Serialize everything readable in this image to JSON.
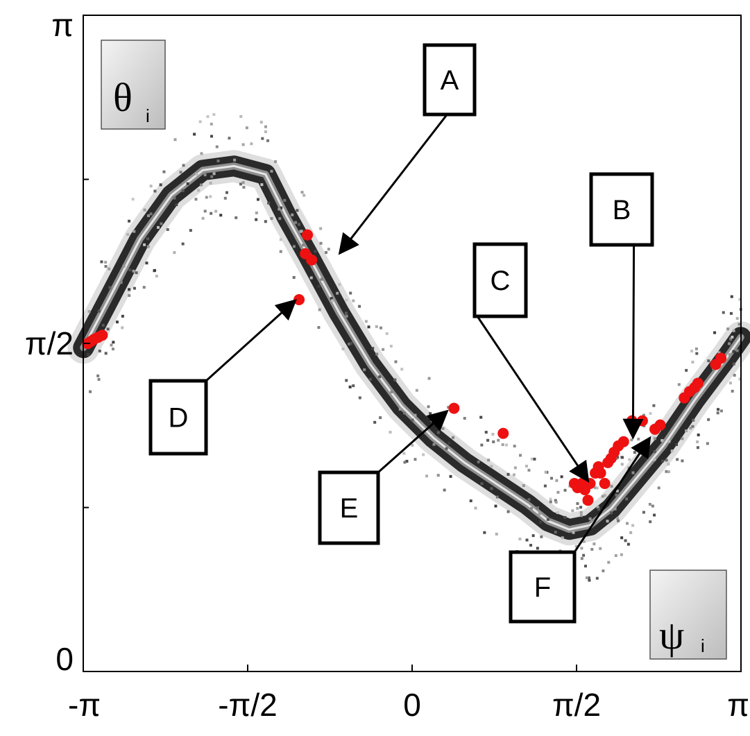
{
  "chart_data": {
    "type": "scatter",
    "title": "",
    "xlabel": "ψi",
    "ylabel": "θi",
    "xlim": [
      -3.14159,
      3.14159
    ],
    "ylim": [
      0,
      3.14159
    ],
    "grid": false,
    "x_ticks": [
      {
        "value": -3.14159,
        "label": "-π"
      },
      {
        "value": -1.5708,
        "label": "-π/2"
      },
      {
        "value": 0,
        "label": "0"
      },
      {
        "value": 1.5708,
        "label": "π/2"
      },
      {
        "value": 3.14159,
        "label": "π"
      }
    ],
    "y_ticks": [
      {
        "value": 0,
        "label": "0"
      },
      {
        "value": 1.5708,
        "label": "π/2"
      },
      {
        "value": 3.14159,
        "label": "π"
      }
    ],
    "y_minor_ticks": [
      0.785,
      2.356
    ],
    "axis_boxes": {
      "y": {
        "main": "θ",
        "sub": "i"
      },
      "x": {
        "main": "ψ",
        "sub": "i"
      }
    },
    "density_band": [
      [
        -3.14,
        1.55
      ],
      [
        -2.9,
        1.78
      ],
      [
        -2.6,
        2.07
      ],
      [
        -2.3,
        2.28
      ],
      [
        -2.0,
        2.4
      ],
      [
        -1.7,
        2.42
      ],
      [
        -1.4,
        2.38
      ],
      [
        -1.2,
        2.18
      ],
      [
        -1.0,
        2.0
      ],
      [
        -0.7,
        1.72
      ],
      [
        -0.4,
        1.47
      ],
      [
        -0.1,
        1.27
      ],
      [
        0.2,
        1.12
      ],
      [
        0.5,
        1.0
      ],
      [
        0.8,
        0.9
      ],
      [
        1.1,
        0.8
      ],
      [
        1.3,
        0.72
      ],
      [
        1.5,
        0.68
      ],
      [
        1.7,
        0.7
      ],
      [
        1.9,
        0.78
      ],
      [
        2.1,
        0.9
      ],
      [
        2.4,
        1.08
      ],
      [
        2.7,
        1.3
      ],
      [
        3.0,
        1.5
      ],
      [
        3.14,
        1.6
      ]
    ],
    "red_points": [
      {
        "x": -3.1,
        "y": 1.57
      },
      {
        "x": -3.07,
        "y": 1.58
      },
      {
        "x": -3.04,
        "y": 1.59
      },
      {
        "x": -3.0,
        "y": 1.6
      },
      {
        "x": -2.96,
        "y": 1.61
      },
      {
        "x": -1.02,
        "y": 2.0
      },
      {
        "x": -1.0,
        "y": 2.09
      },
      {
        "x": -0.96,
        "y": 1.97
      },
      {
        "x": -1.08,
        "y": 1.78
      },
      {
        "x": 0.4,
        "y": 1.26
      },
      {
        "x": 0.87,
        "y": 1.14
      },
      {
        "x": 1.55,
        "y": 0.9
      },
      {
        "x": 1.58,
        "y": 0.88
      },
      {
        "x": 1.62,
        "y": 0.9
      },
      {
        "x": 1.65,
        "y": 0.87
      },
      {
        "x": 1.7,
        "y": 0.9
      },
      {
        "x": 1.75,
        "y": 0.95
      },
      {
        "x": 1.78,
        "y": 0.98
      },
      {
        "x": 1.8,
        "y": 0.95
      },
      {
        "x": 1.84,
        "y": 0.9
      },
      {
        "x": 1.87,
        "y": 1.0
      },
      {
        "x": 1.9,
        "y": 1.02
      },
      {
        "x": 1.93,
        "y": 1.05
      },
      {
        "x": 1.97,
        "y": 1.08
      },
      {
        "x": 2.02,
        "y": 1.1
      },
      {
        "x": 2.1,
        "y": 1.2
      },
      {
        "x": 2.2,
        "y": 1.2
      },
      {
        "x": 2.32,
        "y": 1.16
      },
      {
        "x": 2.37,
        "y": 1.18
      },
      {
        "x": 2.6,
        "y": 1.31
      },
      {
        "x": 2.65,
        "y": 1.34
      },
      {
        "x": 2.7,
        "y": 1.36
      },
      {
        "x": 2.73,
        "y": 1.38
      },
      {
        "x": 2.9,
        "y": 1.47
      },
      {
        "x": 2.95,
        "y": 1.5
      },
      {
        "x": 1.68,
        "y": 0.82
      }
    ],
    "callouts": [
      {
        "label": "A",
        "target": {
          "x": -0.68,
          "y": 2.01
        },
        "anchor": "above-right"
      },
      {
        "label": "B",
        "target": {
          "x": 2.11,
          "y": 1.13
        },
        "anchor": "above"
      },
      {
        "label": "C",
        "target": {
          "x": 1.67,
          "y": 0.92
        },
        "anchor": "above-left"
      },
      {
        "label": "D",
        "target": {
          "x": -1.13,
          "y": 1.77
        },
        "anchor": "below-left"
      },
      {
        "label": "E",
        "target": {
          "x": 0.32,
          "y": 1.24
        },
        "anchor": "below-left"
      },
      {
        "label": "F",
        "target": {
          "x": 2.26,
          "y": 1.11
        },
        "anchor": "below-left"
      }
    ]
  }
}
